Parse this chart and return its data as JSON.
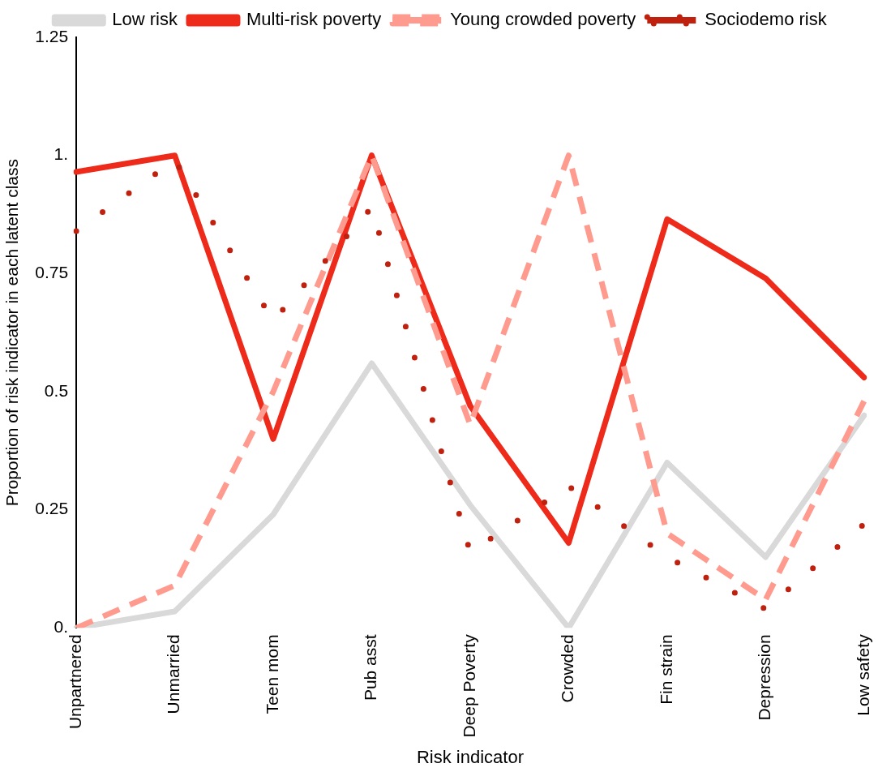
{
  "chart_data": {
    "type": "line",
    "xlabel": "Risk indicator",
    "ylabel": "Proportion of risk indicator in each latent class",
    "categories": [
      "Unpartnered",
      "Unmarried",
      "Teen mom",
      "Pub asst",
      "Deep Poverty",
      "Crowded",
      "Fin strain",
      "Depression",
      "Low safety"
    ],
    "series": [
      {
        "name": "Low risk",
        "color": "#d9d9d9",
        "line_style": "solid",
        "values": [
          0,
          0.035,
          0.24,
          0.56,
          0.26,
          0,
          0.35,
          0.15,
          0.45
        ]
      },
      {
        "name": "Multi-risk poverty",
        "color": "#ee2a1b",
        "line_style": "solid",
        "values": [
          0.965,
          1.0,
          0.4,
          1.0,
          0.47,
          0.18,
          0.865,
          0.74,
          0.53
        ]
      },
      {
        "name": "Young crowded poverty",
        "color": "#ff9a8e",
        "line_style": "dashed",
        "values": [
          0,
          0.09,
          0.5,
          1.0,
          0.43,
          1.0,
          0.2,
          0.06,
          0.48
        ]
      },
      {
        "name": "Sociodemo risk",
        "color": "#c0210f",
        "line_style": "dotted",
        "values": [
          0.84,
          0.99,
          0.65,
          0.89,
          0.16,
          0.3,
          0.15,
          0.04,
          0.22
        ]
      }
    ],
    "ylim": [
      0,
      1.25
    ],
    "yticks": [
      {
        "value": 0,
        "label": "0."
      },
      0.25,
      0.5,
      0.75,
      {
        "value": 1,
        "label": "1."
      },
      1.25
    ],
    "grid": false,
    "legend": "top",
    "marker": "none"
  }
}
